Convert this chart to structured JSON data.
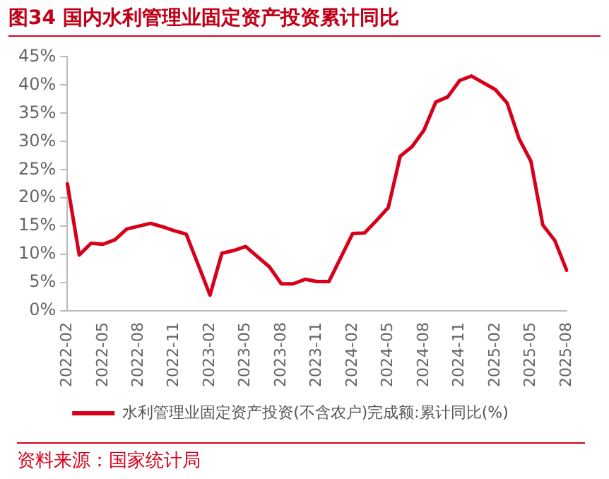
{
  "chart_data": {
    "type": "line",
    "title": "图34  国内水利管理业固定资产投资累计同比",
    "categories": [
      "2022-02",
      null,
      null,
      "2022-05",
      null,
      null,
      "2022-08",
      null,
      null,
      "2022-11",
      null,
      null,
      "2023-02",
      null,
      null,
      "2023-05",
      null,
      null,
      "2023-08",
      null,
      null,
      "2023-11",
      null,
      null,
      "2024-02",
      null,
      null,
      "2024-05",
      null,
      null,
      "2024-08",
      null,
      null,
      "2024-11",
      null,
      null,
      "2025-02",
      null,
      null,
      "2025-05",
      null,
      null,
      "2025-08"
    ],
    "series": [
      {
        "name": "水利管理业固定资产投资(不含农户)完成额:累计同比(%)",
        "color": "#d7001a",
        "values": [
          22.5,
          9.9,
          12.0,
          11.8,
          12.6,
          14.5,
          15.0,
          15.5,
          14.9,
          14.2,
          13.6,
          null,
          2.8,
          10.2,
          10.7,
          11.4,
          9.6,
          7.8,
          4.8,
          4.8,
          5.6,
          5.2,
          5.2,
          null,
          13.7,
          13.8,
          16.0,
          18.3,
          27.4,
          29.1,
          32.0,
          37.0,
          37.9,
          40.8,
          41.6,
          null,
          39.2,
          36.8,
          30.5,
          26.5,
          15.2,
          12.5,
          7.2
        ]
      }
    ],
    "ylim": [
      0,
      45
    ],
    "yticks": [
      {
        "value": 0,
        "label": "0%"
      },
      {
        "value": 5,
        "label": "5%"
      },
      {
        "value": 10,
        "label": "10%"
      },
      {
        "value": 15,
        "label": "15%"
      },
      {
        "value": 20,
        "label": "20%"
      },
      {
        "value": 25,
        "label": "25%"
      },
      {
        "value": 30,
        "label": "30%"
      },
      {
        "value": 35,
        "label": "35%"
      },
      {
        "value": 40,
        "label": "40%"
      },
      {
        "value": 45,
        "label": "45%"
      }
    ],
    "grid": false,
    "legend": "bottom",
    "marker": "none",
    "line_style": "solid",
    "annotations": [
      "资料来源：国家统计局"
    ]
  }
}
